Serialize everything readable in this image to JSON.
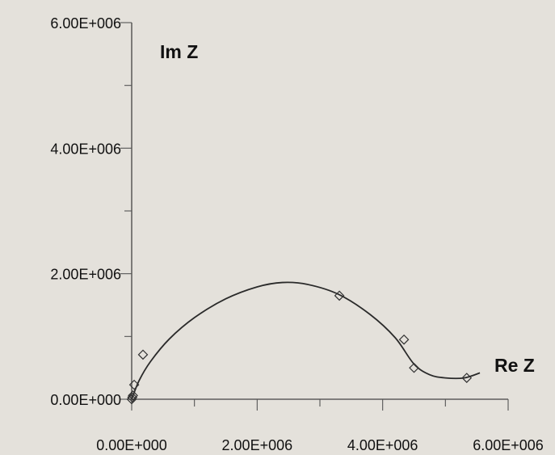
{
  "chart_data": {
    "type": "scatter",
    "title": "",
    "xlabel": "Re Z",
    "ylabel": "Im Z",
    "xlim": [
      0,
      6000000
    ],
    "ylim": [
      0,
      6000000
    ],
    "x_ticks": [
      0,
      2000000,
      4000000,
      6000000
    ],
    "x_tick_labels": [
      "0.00E+000",
      "2.00E+006",
      "4.00E+006",
      "6.00E+006"
    ],
    "y_ticks": [
      0,
      2000000,
      4000000,
      6000000
    ],
    "y_tick_labels": [
      "0.00E+000",
      "2.00E+006",
      "4.00E+006",
      "6.00E+006"
    ],
    "minor_tick_step": 1000000,
    "grid": false,
    "legend": "none",
    "series": [
      {
        "kind": "markers",
        "marker": "diamond",
        "points": [
          {
            "x": 0,
            "y": 0
          },
          {
            "x": 10000,
            "y": 30000
          },
          {
            "x": 20000,
            "y": 60000
          },
          {
            "x": 40000,
            "y": 230000
          },
          {
            "x": 180000,
            "y": 710000
          },
          {
            "x": 3310000,
            "y": 1650000
          },
          {
            "x": 4340000,
            "y": 950000
          },
          {
            "x": 4500000,
            "y": 500000
          },
          {
            "x": 5340000,
            "y": 340000
          }
        ]
      },
      {
        "kind": "line",
        "points": [
          {
            "x": 0,
            "y": 0
          },
          {
            "x": 120000,
            "y": 300000
          },
          {
            "x": 300000,
            "y": 600000
          },
          {
            "x": 600000,
            "y": 960000
          },
          {
            "x": 1000000,
            "y": 1300000
          },
          {
            "x": 1500000,
            "y": 1600000
          },
          {
            "x": 2000000,
            "y": 1790000
          },
          {
            "x": 2400000,
            "y": 1860000
          },
          {
            "x": 2800000,
            "y": 1830000
          },
          {
            "x": 3300000,
            "y": 1670000
          },
          {
            "x": 3800000,
            "y": 1350000
          },
          {
            "x": 4200000,
            "y": 980000
          },
          {
            "x": 4500000,
            "y": 560000
          },
          {
            "x": 4750000,
            "y": 390000
          },
          {
            "x": 5000000,
            "y": 340000
          },
          {
            "x": 5300000,
            "y": 340000
          },
          {
            "x": 5550000,
            "y": 420000
          }
        ]
      }
    ],
    "colors": {
      "background": "#e4e1db",
      "ink": "#2a2a2a"
    }
  }
}
